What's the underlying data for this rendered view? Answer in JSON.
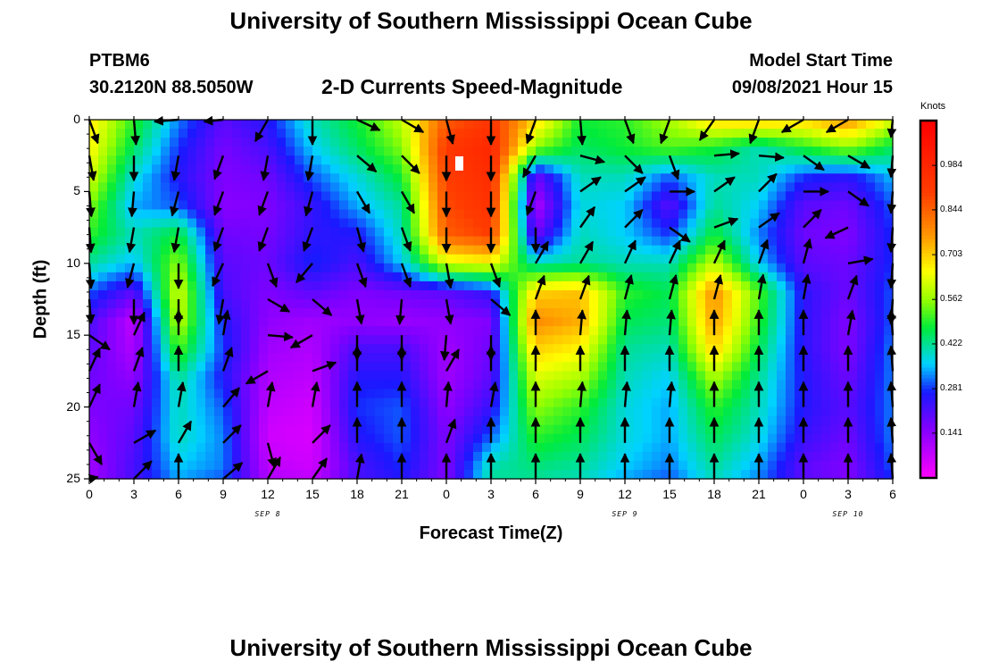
{
  "header": {
    "title_top": "University of Southern Mississippi Ocean Cube",
    "title_bottom": "University of Southern Mississippi Ocean Cube",
    "station": "PTBM6",
    "coords": "30.2120N  88.5050W",
    "plot_title": "2-D Currents Speed-Magnitude",
    "model_label": "Model Start Time",
    "model_time": "09/08/2021 Hour 15"
  },
  "chart_data": {
    "type": "heatmap",
    "title": "2-D Currents Speed-Magnitude",
    "xlabel": "Forecast Time(Z)",
    "ylabel": "Depth (ft)",
    "colorbar_title": "Knots",
    "colorbar_ticks": [
      "0.984",
      "0.844",
      "0.703",
      "0.562",
      "0.422",
      "0.281",
      "0.141"
    ],
    "colorbar_values": [
      0.984,
      0.844,
      0.703,
      0.562,
      0.422,
      0.281,
      0.141
    ],
    "color_range": [
      0.0,
      1.125
    ],
    "x_ticks": [
      "0",
      "3",
      "6",
      "9",
      "12",
      "15",
      "18",
      "21",
      "0",
      "3",
      "6",
      "9",
      "12",
      "15",
      "18",
      "21",
      "0",
      "3",
      "6"
    ],
    "x_range_hours": [
      0,
      54
    ],
    "date_labels": [
      {
        "text": "SEP 8",
        "hour": 12
      },
      {
        "text": "SEP 9",
        "hour": 36
      },
      {
        "text": "SEP 10",
        "hour": 51
      }
    ],
    "y_ticks": [
      "0",
      "5",
      "10",
      "15",
      "20",
      "25"
    ],
    "y_values": [
      0,
      5,
      10,
      15,
      20,
      25
    ],
    "y_range": [
      0,
      25
    ],
    "y_inverted": true,
    "speed_grid": {
      "x_hours": [
        0,
        3,
        6,
        9,
        12,
        15,
        18,
        21,
        24,
        27,
        30,
        33,
        36,
        39,
        42,
        45,
        48,
        51,
        54
      ],
      "depth_ft": [
        0,
        2,
        4,
        6,
        8,
        10,
        12,
        14,
        16,
        18,
        20,
        22,
        24,
        25
      ],
      "values": [
        [
          0.68,
          0.5,
          0.32,
          0.2,
          0.26,
          0.4,
          0.48,
          0.6,
          0.85,
          0.92,
          0.7,
          0.48,
          0.5,
          0.58,
          0.7,
          0.72,
          0.7,
          0.78,
          0.62
        ],
        [
          0.66,
          0.45,
          0.28,
          0.17,
          0.22,
          0.36,
          0.45,
          0.55,
          0.92,
          0.98,
          0.55,
          0.45,
          0.48,
          0.52,
          0.48,
          0.4,
          0.48,
          0.55,
          0.45
        ],
        [
          0.62,
          0.38,
          0.26,
          0.16,
          0.18,
          0.3,
          0.38,
          0.48,
          0.9,
          0.96,
          0.18,
          0.4,
          0.4,
          0.3,
          0.4,
          0.4,
          0.28,
          0.25,
          0.35
        ],
        [
          0.55,
          0.34,
          0.3,
          0.15,
          0.16,
          0.24,
          0.34,
          0.42,
          0.88,
          0.94,
          0.1,
          0.38,
          0.36,
          0.2,
          0.42,
          0.36,
          0.2,
          0.18,
          0.3
        ],
        [
          0.5,
          0.4,
          0.48,
          0.18,
          0.17,
          0.25,
          0.26,
          0.4,
          0.85,
          0.9,
          0.18,
          0.4,
          0.36,
          0.28,
          0.48,
          0.32,
          0.18,
          0.16,
          0.28
        ],
        [
          0.42,
          0.35,
          0.56,
          0.2,
          0.18,
          0.28,
          0.22,
          0.36,
          0.62,
          0.65,
          0.4,
          0.42,
          0.4,
          0.4,
          0.6,
          0.36,
          0.2,
          0.18,
          0.28
        ],
        [
          0.3,
          0.2,
          0.62,
          0.22,
          0.16,
          0.2,
          0.16,
          0.18,
          0.2,
          0.25,
          0.7,
          0.72,
          0.5,
          0.46,
          0.78,
          0.52,
          0.25,
          0.18,
          0.3
        ],
        [
          0.22,
          0.08,
          0.6,
          0.26,
          0.14,
          0.12,
          0.14,
          0.13,
          0.14,
          0.16,
          0.78,
          0.74,
          0.46,
          0.44,
          0.76,
          0.5,
          0.25,
          0.16,
          0.3
        ],
        [
          0.2,
          0.1,
          0.52,
          0.28,
          0.12,
          0.1,
          0.22,
          0.22,
          0.12,
          0.18,
          0.7,
          0.66,
          0.42,
          0.4,
          0.7,
          0.46,
          0.25,
          0.16,
          0.32
        ],
        [
          0.18,
          0.14,
          0.42,
          0.26,
          0.1,
          0.08,
          0.26,
          0.26,
          0.12,
          0.2,
          0.62,
          0.58,
          0.4,
          0.36,
          0.58,
          0.42,
          0.26,
          0.18,
          0.32
        ],
        [
          0.16,
          0.18,
          0.4,
          0.3,
          0.08,
          0.06,
          0.28,
          0.3,
          0.14,
          0.24,
          0.56,
          0.5,
          0.38,
          0.34,
          0.5,
          0.4,
          0.26,
          0.2,
          0.32
        ],
        [
          0.14,
          0.2,
          0.4,
          0.32,
          0.06,
          0.05,
          0.26,
          0.3,
          0.16,
          0.3,
          0.5,
          0.46,
          0.38,
          0.34,
          0.46,
          0.38,
          0.24,
          0.18,
          0.32
        ],
        [
          0.12,
          0.22,
          0.36,
          0.32,
          0.08,
          0.06,
          0.22,
          0.28,
          0.16,
          0.4,
          0.44,
          0.42,
          0.36,
          0.32,
          0.42,
          0.34,
          0.2,
          0.16,
          0.3
        ],
        [
          0.12,
          0.22,
          0.34,
          0.3,
          0.1,
          0.08,
          0.22,
          0.26,
          0.16,
          0.42,
          0.42,
          0.4,
          0.34,
          0.3,
          0.4,
          0.32,
          0.2,
          0.16,
          0.28
        ]
      ]
    },
    "vectors": {
      "x_hours": [
        0,
        3,
        6,
        9,
        12,
        15,
        18,
        21,
        24,
        27,
        30,
        33,
        36,
        39,
        42,
        45,
        48,
        51,
        54
      ],
      "depth_ft": [
        0,
        2.5,
        5,
        7.5,
        10,
        12.5,
        15,
        17.5,
        20,
        22.5,
        25
      ],
      "dir_deg": [
        [
          160,
          175,
          285,
          310,
          210,
          180,
          115,
          120,
          165,
          180,
          200,
          175,
          160,
          200,
          215,
          200,
          240,
          240,
          135
        ],
        [
          170,
          180,
          190,
          200,
          190,
          190,
          130,
          135,
          180,
          180,
          210,
          105,
          135,
          160,
          85,
          95,
          125,
          120,
          150
        ],
        [
          175,
          185,
          195,
          200,
          200,
          195,
          150,
          150,
          180,
          180,
          200,
          55,
          55,
          90,
          55,
          45,
          90,
          125,
          150
        ],
        [
          180,
          190,
          190,
          200,
          200,
          200,
          165,
          160,
          180,
          180,
          180,
          35,
          45,
          125,
          70,
          55,
          45,
          245,
          170
        ],
        [
          180,
          195,
          180,
          205,
          160,
          220,
          160,
          160,
          170,
          160,
          30,
          30,
          25,
          25,
          25,
          20,
          15,
          80,
          170
        ],
        [
          195,
          180,
          180,
          190,
          120,
          130,
          170,
          185,
          170,
          130,
          20,
          20,
          15,
          15,
          15,
          10,
          10,
          20,
          180
        ],
        [
          125,
          25,
          0,
          10,
          95,
          240,
          180,
          180,
          185,
          180,
          0,
          5,
          5,
          5,
          0,
          0,
          0,
          10,
          0
        ],
        [
          25,
          20,
          0,
          20,
          240,
          70,
          0,
          0,
          30,
          0,
          0,
          0,
          0,
          0,
          0,
          0,
          0,
          0,
          0
        ],
        [
          25,
          10,
          10,
          40,
          10,
          10,
          0,
          0,
          5,
          10,
          0,
          5,
          5,
          5,
          0,
          0,
          0,
          0,
          0
        ],
        [
          150,
          60,
          30,
          45,
          165,
          45,
          0,
          0,
          20,
          0,
          0,
          0,
          0,
          0,
          0,
          0,
          0,
          0,
          0
        ],
        [
          160,
          45,
          0,
          50,
          30,
          35,
          10,
          0,
          0,
          0,
          0,
          0,
          0,
          0,
          0,
          0,
          0,
          0,
          0
        ]
      ]
    }
  }
}
